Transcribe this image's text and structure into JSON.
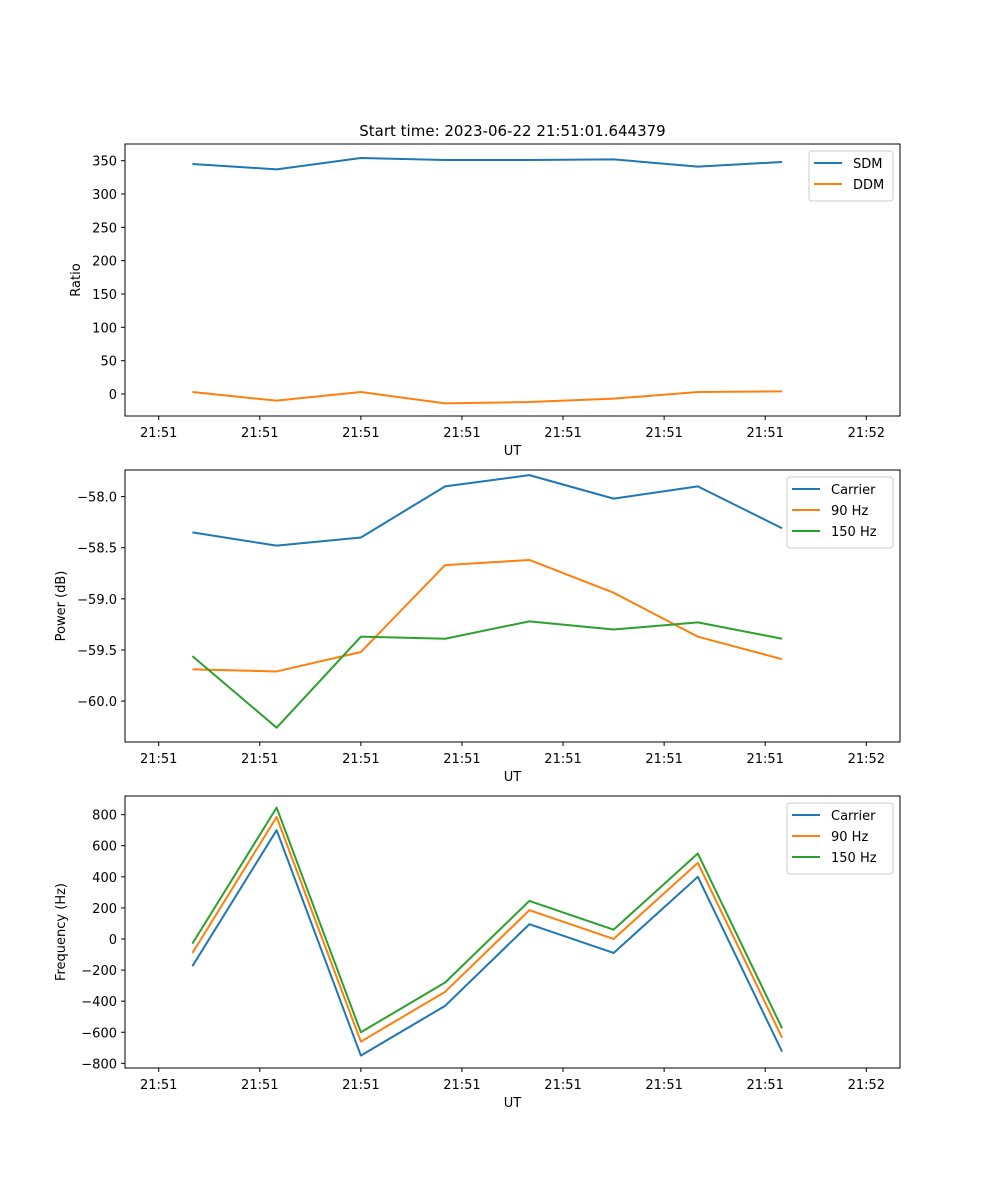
{
  "figure": {
    "title": "Start time: 2023-06-22 21:51:01.644379"
  },
  "chart_data": [
    {
      "type": "line",
      "xlabel": "UT",
      "ylabel": "Ratio",
      "x": [
        "21:51:03.4",
        "21:51:03.9",
        "21:51:04.4",
        "21:51:04.9",
        "21:51:05.4",
        "21:51:05.9",
        "21:51:06.4",
        "21:51:06.9"
      ],
      "xticks": [
        "21:51",
        "21:51",
        "21:51",
        "21:51",
        "21:51",
        "21:51",
        "21:51",
        "21:52"
      ],
      "xlim": [
        "21:51:03.0",
        "21:51:07.6"
      ],
      "ylim": [
        -33,
        375
      ],
      "yticks": [
        0,
        50,
        100,
        150,
        200,
        250,
        300,
        350
      ],
      "legend_position": "top-right",
      "series": [
        {
          "name": "SDM",
          "color": "#1f77b4",
          "values": [
            345,
            337,
            354,
            351,
            351,
            352,
            341,
            348
          ]
        },
        {
          "name": "DDM",
          "color": "#ff7f0e",
          "values": [
            3,
            -10,
            3,
            -14,
            -12,
            -7,
            3,
            4
          ]
        }
      ]
    },
    {
      "type": "line",
      "xlabel": "UT",
      "ylabel": "Power (dB)",
      "x": [
        "21:51:03.4",
        "21:51:03.9",
        "21:51:04.4",
        "21:51:04.9",
        "21:51:05.4",
        "21:51:05.9",
        "21:51:06.4",
        "21:51:06.9"
      ],
      "xticks": [
        "21:51",
        "21:51",
        "21:51",
        "21:51",
        "21:51",
        "21:51",
        "21:51",
        "21:52"
      ],
      "xlim": [
        "21:51:03.0",
        "21:51:07.6"
      ],
      "ylim": [
        -60.4,
        -57.74
      ],
      "yticks": [
        -60.0,
        -59.5,
        -59.0,
        -58.5,
        -58.0
      ],
      "ytick_labels": [
        "−60.0",
        "−59.5",
        "−59.0",
        "−58.5",
        "−58.0"
      ],
      "legend_position": "top-right",
      "series": [
        {
          "name": "Carrier",
          "color": "#1f77b4",
          "values": [
            -58.35,
            -58.48,
            -58.4,
            -57.9,
            -57.79,
            -58.02,
            -57.9,
            -58.31
          ]
        },
        {
          "name": "90 Hz",
          "color": "#ff7f0e",
          "values": [
            -59.69,
            -59.71,
            -59.52,
            -58.67,
            -58.62,
            -58.94,
            -59.37,
            -59.59
          ]
        },
        {
          "name": "150 Hz",
          "color": "#2ca02c",
          "values": [
            -59.56,
            -60.26,
            -59.37,
            -59.39,
            -59.22,
            -59.3,
            -59.23,
            -59.39
          ]
        }
      ]
    },
    {
      "type": "line",
      "xlabel": "UT",
      "ylabel": "Frequency (Hz)",
      "x": [
        "21:51:03.4",
        "21:51:03.9",
        "21:51:04.4",
        "21:51:04.9",
        "21:51:05.4",
        "21:51:05.9",
        "21:51:06.4",
        "21:51:06.9"
      ],
      "xticks": [
        "21:51",
        "21:51",
        "21:51",
        "21:51",
        "21:51",
        "21:51",
        "21:51",
        "21:52"
      ],
      "xlim": [
        "21:51:03.0",
        "21:51:07.6"
      ],
      "ylim": [
        -830,
        920
      ],
      "yticks": [
        -800,
        -600,
        -400,
        -200,
        0,
        200,
        400,
        600,
        800
      ],
      "ytick_labels": [
        "−800",
        "−600",
        "−400",
        "−200",
        "0",
        "200",
        "400",
        "600",
        "800"
      ],
      "legend_position": "top-right",
      "series": [
        {
          "name": "Carrier",
          "color": "#1f77b4",
          "values": [
            -175,
            700,
            -750,
            -430,
            95,
            -90,
            400,
            -725
          ]
        },
        {
          "name": "90 Hz",
          "color": "#ff7f0e",
          "values": [
            -90,
            785,
            -660,
            -340,
            185,
            0,
            490,
            -635
          ]
        },
        {
          "name": "150 Hz",
          "color": "#2ca02c",
          "values": [
            -30,
            845,
            -600,
            -280,
            245,
            60,
            550,
            -575
          ]
        }
      ]
    }
  ]
}
